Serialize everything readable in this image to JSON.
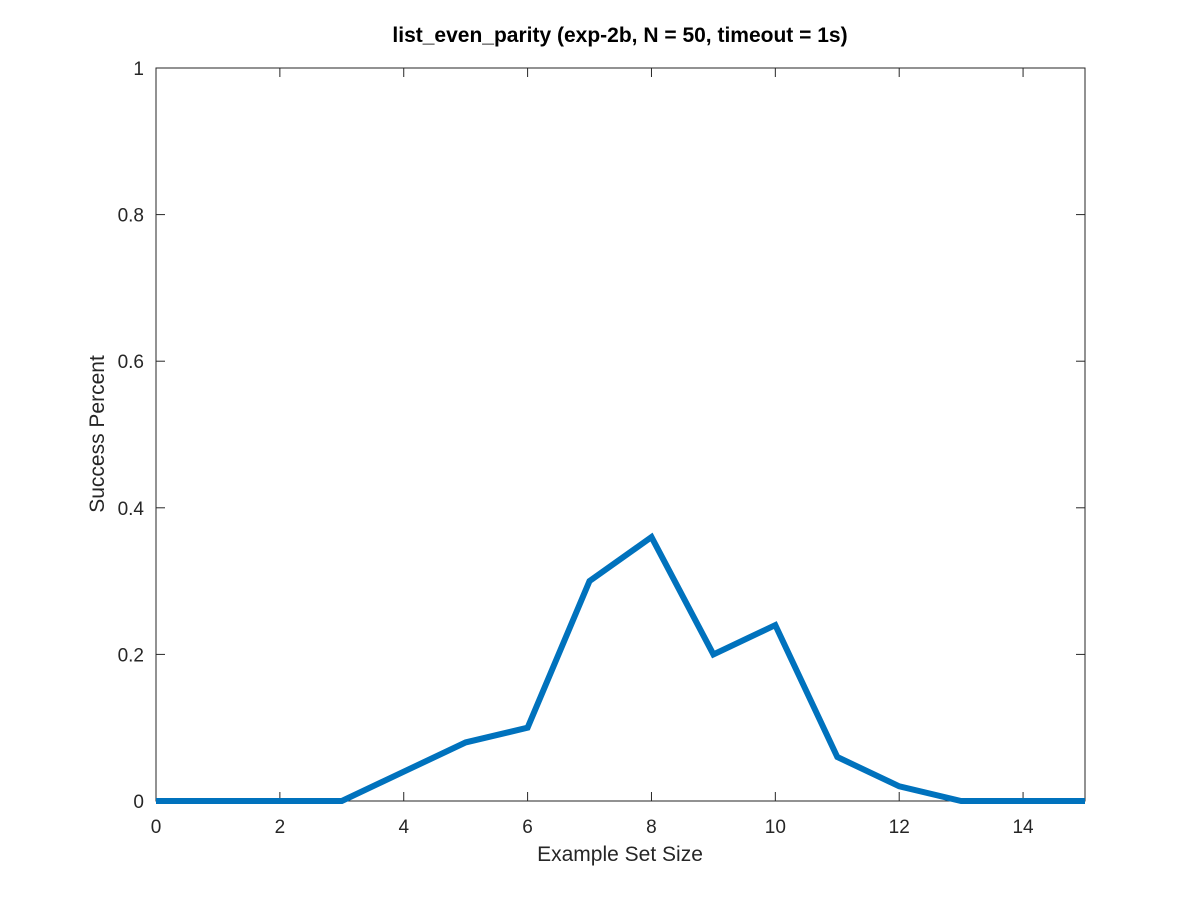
{
  "chart_data": {
    "type": "line",
    "title": "list_even_parity (exp-2b, N = 50, timeout = 1s)",
    "xlabel": "Example Set Size",
    "ylabel": "Success Percent",
    "xlim": [
      0,
      15
    ],
    "ylim": [
      0,
      1
    ],
    "x_ticks": [
      0,
      2,
      4,
      6,
      8,
      10,
      12,
      14
    ],
    "y_ticks": [
      0,
      0.2,
      0.4,
      0.6,
      0.8,
      1
    ],
    "x_tick_labels": [
      "0",
      "2",
      "4",
      "6",
      "8",
      "10",
      "12",
      "14"
    ],
    "y_tick_labels": [
      "0",
      "0.2",
      "0.4",
      "0.6",
      "0.8",
      "1"
    ],
    "grid": false,
    "box": true,
    "colors": {
      "line": "#0072BD",
      "axes": "#262626",
      "background": "#ffffff"
    },
    "series": [
      {
        "x": [
          0,
          1,
          2,
          3,
          4,
          5,
          6,
          7,
          8,
          9,
          10,
          11,
          12,
          13,
          14,
          15
        ],
        "values": [
          0,
          0,
          0,
          0,
          0.04,
          0.08,
          0.1,
          0.3,
          0.36,
          0.2,
          0.24,
          0.06,
          0.02,
          0,
          0,
          0
        ]
      }
    ]
  }
}
